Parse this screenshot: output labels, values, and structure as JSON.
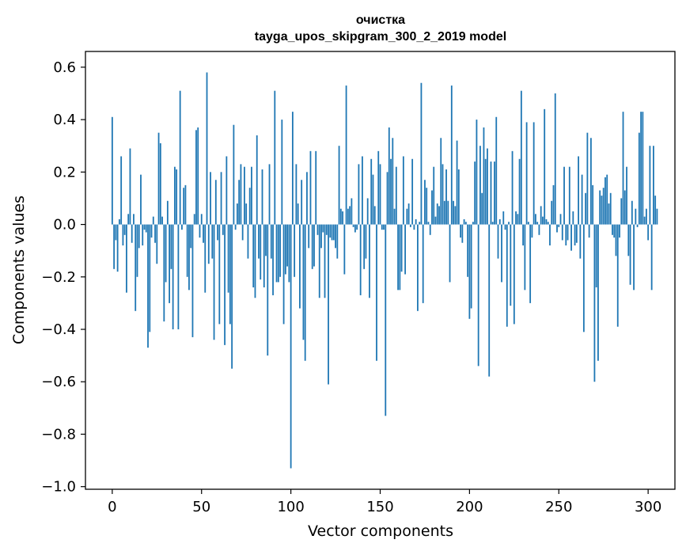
{
  "chart_data": {
    "type": "bar",
    "title": "очистка",
    "subtitle": "tayga_upos_skipgram_300_2_2019 model",
    "xlabel": "Vector components",
    "ylabel": "Components values",
    "xlim": [
      -15,
      315
    ],
    "ylim": [
      -1.01,
      0.66
    ],
    "xticks": [
      0,
      50,
      100,
      150,
      200,
      250,
      300
    ],
    "xtick_labels": [
      "0",
      "50",
      "100",
      "150",
      "200",
      "250",
      "300"
    ],
    "yticks": [
      -1.0,
      -0.8,
      -0.6,
      -0.4,
      -0.2,
      0.0,
      0.2,
      0.4,
      0.6
    ],
    "ytick_labels": [
      "−1.0",
      "−0.8",
      "−0.6",
      "−0.4",
      "−0.2",
      "0.0",
      "0.2",
      "0.4",
      "0.6"
    ],
    "grid": false,
    "bar_color": "#1f77b4",
    "values": [
      0.41,
      -0.17,
      -0.06,
      -0.18,
      0.02,
      0.26,
      -0.08,
      -0.04,
      -0.26,
      0.04,
      0.29,
      -0.07,
      0.04,
      -0.33,
      -0.2,
      -0.09,
      0.19,
      -0.08,
      -0.02,
      -0.03,
      -0.47,
      -0.41,
      -0.05,
      0.03,
      -0.07,
      -0.15,
      0.35,
      0.31,
      0.03,
      -0.37,
      -0.22,
      0.09,
      -0.3,
      -0.17,
      -0.4,
      0.22,
      0.21,
      -0.4,
      0.51,
      -0.02,
      0.14,
      0.15,
      -0.2,
      -0.25,
      -0.09,
      -0.43,
      0.04,
      0.36,
      0.37,
      -0.05,
      0.04,
      -0.07,
      -0.26,
      0.58,
      -0.15,
      0.2,
      -0.13,
      -0.44,
      0.17,
      -0.06,
      -0.38,
      0.2,
      -0.04,
      -0.46,
      0.26,
      -0.26,
      -0.38,
      -0.55,
      0.38,
      -0.02,
      0.08,
      0.17,
      0.23,
      -0.06,
      0.22,
      0.08,
      -0.13,
      0.14,
      0.22,
      -0.24,
      -0.28,
      0.34,
      -0.13,
      -0.21,
      0.21,
      -0.24,
      -0.12,
      -0.5,
      0.23,
      -0.13,
      -0.27,
      0.51,
      -0.22,
      -0.22,
      -0.2,
      0.4,
      -0.38,
      -0.19,
      -0.16,
      -0.22,
      -0.93,
      0.43,
      -0.2,
      0.23,
      0.08,
      -0.32,
      0.17,
      -0.44,
      -0.52,
      0.2,
      -0.09,
      0.28,
      -0.17,
      -0.16,
      0.28,
      -0.04,
      -0.28,
      -0.09,
      -0.03,
      -0.28,
      -0.04,
      -0.61,
      -0.05,
      -0.06,
      -0.06,
      -0.09,
      -0.13,
      0.3,
      0.06,
      0.05,
      -0.19,
      0.53,
      0.06,
      0.07,
      0.1,
      -0.01,
      -0.03,
      -0.02,
      0.23,
      -0.27,
      0.26,
      -0.17,
      -0.13,
      0.1,
      -0.28,
      0.25,
      0.19,
      0.07,
      -0.52,
      0.28,
      0.23,
      -0.02,
      -0.02,
      -0.73,
      0.2,
      0.37,
      0.25,
      0.33,
      0.06,
      0.22,
      -0.25,
      -0.25,
      -0.18,
      0.26,
      -0.19,
      0.06,
      0.08,
      -0.01,
      0.25,
      -0.02,
      0.02,
      -0.33,
      0.01,
      0.54,
      -0.3,
      0.17,
      0.14,
      0.01,
      -0.04,
      0.13,
      0.22,
      0.03,
      0.08,
      0.07,
      0.33,
      0.23,
      0.09,
      0.21,
      0.09,
      -0.22,
      0.53,
      0.09,
      0.07,
      0.32,
      0.21,
      -0.05,
      -0.07,
      0.02,
      0.01,
      -0.2,
      -0.36,
      -0.32,
      0.01,
      0.24,
      0.4,
      -0.54,
      0.3,
      0.12,
      0.37,
      0.25,
      0.29,
      -0.58,
      0.24,
      0.01,
      0.24,
      0.41,
      -0.13,
      0.02,
      -0.22,
      0.05,
      -0.02,
      -0.39,
      0.01,
      -0.31,
      0.28,
      -0.38,
      0.05,
      0.04,
      0.25,
      0.51,
      -0.08,
      -0.25,
      0.39,
      0.01,
      -0.3,
      -0.05,
      0.39,
      0.04,
      0.01,
      -0.04,
      0.07,
      0.03,
      0.44,
      0.02,
      0.01,
      -0.08,
      0.09,
      0.15,
      0.5,
      -0.03,
      -0.01,
      0.04,
      -0.06,
      0.22,
      -0.08,
      -0.06,
      0.22,
      -0.1,
      0.05,
      -0.08,
      -0.07,
      0.26,
      -0.13,
      0.19,
      -0.41,
      0.12,
      0.35,
      -0.05,
      0.33,
      0.15,
      -0.6,
      -0.24,
      -0.52,
      0.13,
      0.11,
      0.14,
      0.18,
      0.19,
      0.08,
      0.12,
      -0.04,
      -0.05,
      -0.12,
      -0.39,
      -0.05,
      0.1,
      0.43,
      0.13,
      0.22,
      -0.12,
      -0.23,
      0.09,
      -0.25,
      0.06,
      -0.01,
      0.35,
      0.43,
      0.43,
      0.03,
      0.06,
      -0.06,
      0.3,
      -0.25,
      0.3,
      0.11,
      0.06
    ]
  }
}
